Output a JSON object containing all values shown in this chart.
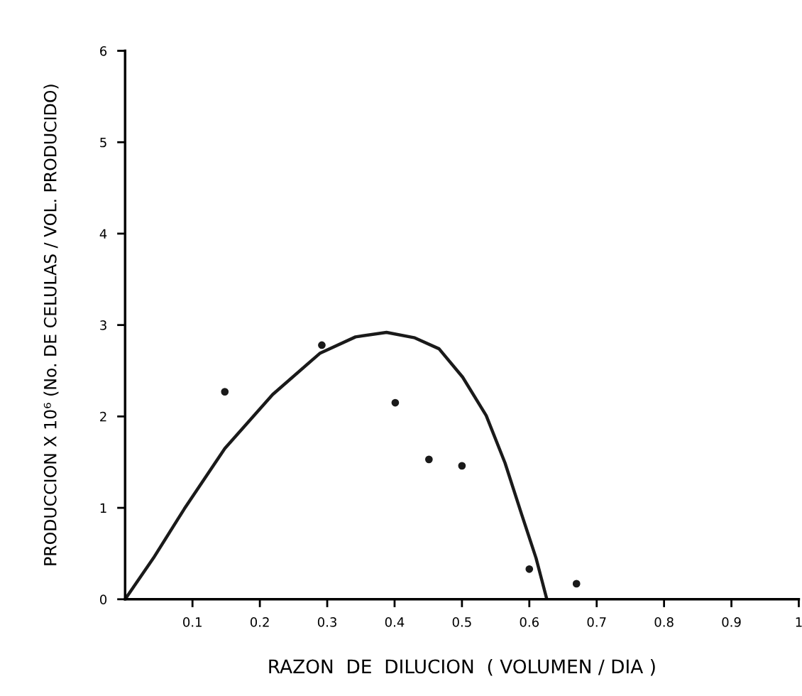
{
  "chart_data": {
    "type": "scatter",
    "xlabel": "RAZON  DE  DILUCION  ( VOLUMEN / DIA )",
    "ylabel": "PRODUCCION X 10⁶ (No. DE CELULAS / VOL. PRODUCIDO)",
    "xlim": [
      0,
      1
    ],
    "ylim": [
      0,
      6
    ],
    "xticks": [
      0.1,
      0.2,
      0.3,
      0.4,
      0.5,
      0.6,
      0.7,
      0.8,
      0.9,
      1
    ],
    "yticks": [
      0,
      1,
      2,
      3,
      4,
      5,
      6
    ],
    "grid": false,
    "legend": false,
    "series": [
      {
        "color": "#1a1a1a",
        "marker": "circle",
        "x": [
          0.148,
          0.292,
          0.401,
          0.451,
          0.5,
          0.6,
          0.67
        ],
        "values": [
          2.27,
          2.78,
          2.15,
          1.53,
          1.46,
          0.33,
          0.17
        ]
      },
      {
        "type": "line",
        "color": "#1a1a1a",
        "marker": "none",
        "line_style": "solid",
        "x": [
          0,
          0.042,
          0.088,
          0.148,
          0.219,
          0.289,
          0.342,
          0.388,
          0.43,
          0.466,
          0.501,
          0.536,
          0.564,
          0.589,
          0.61,
          0.626
        ],
        "values": [
          0,
          0.45,
          0.99,
          1.65,
          2.24,
          2.69,
          2.87,
          2.92,
          2.86,
          2.74,
          2.43,
          2.01,
          1.49,
          0.92,
          0.45,
          0
        ]
      }
    ]
  }
}
